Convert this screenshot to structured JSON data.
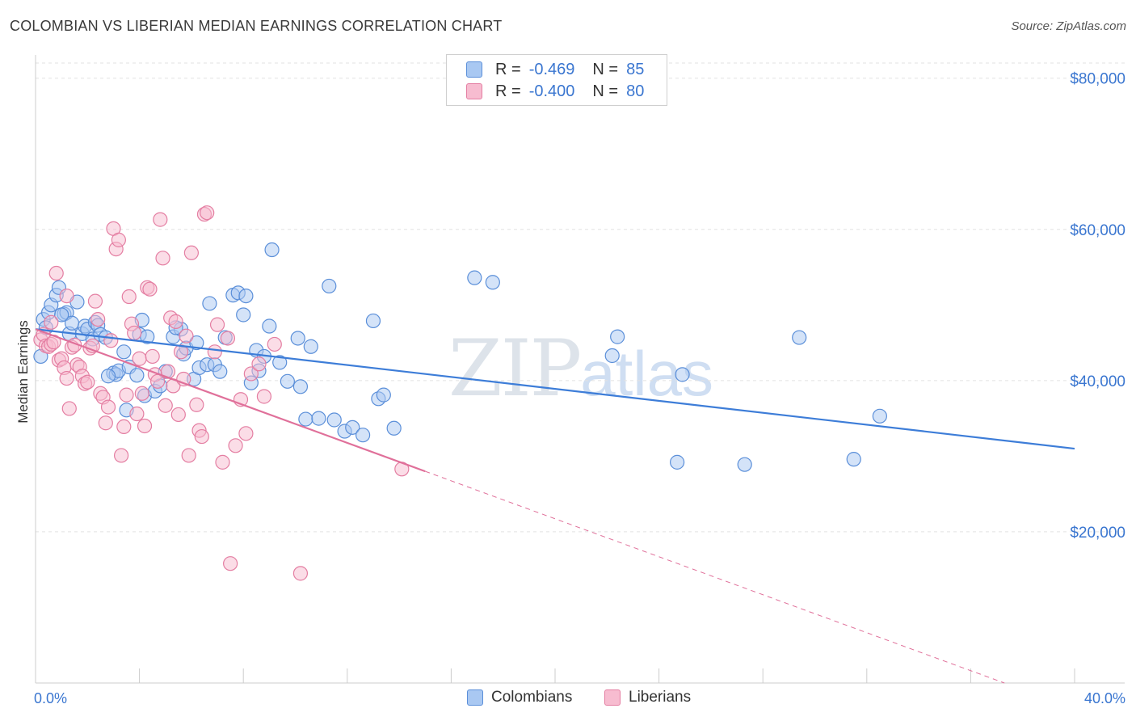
{
  "header": {
    "title": "COLOMBIAN VS LIBERIAN MEDIAN EARNINGS CORRELATION CHART",
    "source": "Source: ZipAtlas.com"
  },
  "watermark": {
    "zip": "ZIP",
    "atlas": "atlas"
  },
  "legend": {
    "rows": [
      {
        "r_label": "R =",
        "r_value": "-0.469",
        "n_label": "N =",
        "n_value": "85",
        "fill": "#a9c8f2",
        "stroke": "#5b8fd9"
      },
      {
        "r_label": "R =",
        "r_value": "-0.400",
        "n_label": "N =",
        "n_value": "80",
        "fill": "#f7bcd0",
        "stroke": "#e47ea2"
      }
    ]
  },
  "bottom_legend": {
    "colombians": "Colombians",
    "liberians": "Liberians"
  },
  "colors": {
    "blue": "#3d7dd8",
    "pink": "#e0709a",
    "axis_text": "#3a76d0",
    "grid": "#e2e2e2"
  },
  "chart_data": {
    "type": "scatter",
    "title": "COLOMBIAN VS LIBERIAN MEDIAN EARNINGS CORRELATION CHART",
    "xlabel": "",
    "ylabel": "Median Earnings",
    "xlim": [
      0,
      40
    ],
    "ylim": [
      0,
      82000
    ],
    "x_tick_labels": [
      "0.0%",
      "40.0%"
    ],
    "y_ticks": [
      20000,
      40000,
      60000,
      80000
    ],
    "y_tick_labels": [
      "$20,000",
      "$40,000",
      "$60,000",
      "$80,000"
    ],
    "grid": true,
    "legend_position": "top-center",
    "series": [
      {
        "name": "Colombians",
        "r": -0.469,
        "n": 85,
        "trend": {
          "x": [
            0,
            40
          ],
          "y": [
            46800,
            31000
          ]
        },
        "points": [
          [
            0.2,
            43200
          ],
          [
            0.3,
            48100
          ],
          [
            0.4,
            47000
          ],
          [
            0.5,
            49000
          ],
          [
            0.6,
            50000
          ],
          [
            0.8,
            51300
          ],
          [
            0.9,
            52300
          ],
          [
            1.1,
            48800
          ],
          [
            1.2,
            49000
          ],
          [
            1.3,
            46200
          ],
          [
            1.4,
            47600
          ],
          [
            1.6,
            50400
          ],
          [
            1.8,
            46200
          ],
          [
            1.9,
            47200
          ],
          [
            2.0,
            46800
          ],
          [
            2.2,
            45500
          ],
          [
            2.3,
            47700
          ],
          [
            2.4,
            47300
          ],
          [
            2.5,
            46100
          ],
          [
            2.7,
            45700
          ],
          [
            3.0,
            41000
          ],
          [
            3.1,
            40800
          ],
          [
            3.2,
            41300
          ],
          [
            3.4,
            43800
          ],
          [
            3.5,
            36100
          ],
          [
            3.6,
            41800
          ],
          [
            3.9,
            40700
          ],
          [
            4.0,
            46100
          ],
          [
            4.1,
            48000
          ],
          [
            4.2,
            38000
          ],
          [
            4.3,
            45800
          ],
          [
            4.6,
            38600
          ],
          [
            4.8,
            39300
          ],
          [
            5.0,
            41200
          ],
          [
            5.3,
            45800
          ],
          [
            5.6,
            46800
          ],
          [
            5.7,
            43500
          ],
          [
            5.8,
            44300
          ],
          [
            6.1,
            40200
          ],
          [
            6.3,
            41700
          ],
          [
            6.6,
            42100
          ],
          [
            6.7,
            50200
          ],
          [
            6.9,
            42100
          ],
          [
            7.1,
            41200
          ],
          [
            7.3,
            45700
          ],
          [
            7.6,
            51300
          ],
          [
            7.8,
            51600
          ],
          [
            8.1,
            51200
          ],
          [
            8.3,
            39700
          ],
          [
            8.5,
            44000
          ],
          [
            8.6,
            41300
          ],
          [
            8.8,
            43200
          ],
          [
            9.0,
            47200
          ],
          [
            9.1,
            57300
          ],
          [
            9.4,
            42400
          ],
          [
            9.7,
            39900
          ],
          [
            10.1,
            45600
          ],
          [
            10.2,
            39200
          ],
          [
            10.4,
            34900
          ],
          [
            10.6,
            44500
          ],
          [
            10.9,
            35000
          ],
          [
            11.3,
            52500
          ],
          [
            11.5,
            34800
          ],
          [
            11.9,
            33300
          ],
          [
            12.2,
            33800
          ],
          [
            12.6,
            32800
          ],
          [
            13.2,
            37600
          ],
          [
            13.4,
            38100
          ],
          [
            13.8,
            33700
          ],
          [
            16.9,
            53600
          ],
          [
            17.6,
            53000
          ],
          [
            22.2,
            43300
          ],
          [
            22.4,
            45800
          ],
          [
            24.7,
            29200
          ],
          [
            24.9,
            40800
          ],
          [
            27.3,
            28900
          ],
          [
            29.4,
            45700
          ],
          [
            31.5,
            29600
          ],
          [
            32.5,
            35300
          ],
          [
            1.0,
            48700
          ],
          [
            2.8,
            40600
          ],
          [
            5.4,
            47000
          ],
          [
            6.2,
            45000
          ],
          [
            8.0,
            48700
          ],
          [
            13.0,
            47900
          ]
        ]
      },
      {
        "name": "Liberians",
        "r": -0.4,
        "n": 80,
        "trend": {
          "x": [
            0,
            15
          ],
          "y": [
            46800,
            28000
          ]
        },
        "trend_extended": {
          "x": [
            15,
            37.3
          ],
          "y": [
            28000,
            0
          ]
        },
        "points": [
          [
            0.2,
            45400
          ],
          [
            0.3,
            46100
          ],
          [
            0.4,
            44600
          ],
          [
            0.5,
            44500
          ],
          [
            0.6,
            44800
          ],
          [
            0.7,
            45100
          ],
          [
            0.8,
            54200
          ],
          [
            0.9,
            42700
          ],
          [
            1.0,
            42900
          ],
          [
            1.1,
            41700
          ],
          [
            1.2,
            40300
          ],
          [
            1.3,
            36300
          ],
          [
            1.4,
            44400
          ],
          [
            1.5,
            44700
          ],
          [
            1.6,
            42100
          ],
          [
            1.7,
            41800
          ],
          [
            1.8,
            40600
          ],
          [
            1.9,
            39600
          ],
          [
            2.0,
            39800
          ],
          [
            2.1,
            44300
          ],
          [
            2.2,
            44600
          ],
          [
            2.3,
            50500
          ],
          [
            2.4,
            48100
          ],
          [
            2.5,
            38300
          ],
          [
            2.6,
            37800
          ],
          [
            2.7,
            34400
          ],
          [
            2.8,
            36500
          ],
          [
            3.0,
            60100
          ],
          [
            3.1,
            57400
          ],
          [
            3.2,
            58600
          ],
          [
            3.3,
            30100
          ],
          [
            3.4,
            33900
          ],
          [
            3.5,
            38100
          ],
          [
            3.6,
            51100
          ],
          [
            3.7,
            47500
          ],
          [
            3.8,
            46300
          ],
          [
            4.0,
            42900
          ],
          [
            4.1,
            38300
          ],
          [
            4.2,
            34000
          ],
          [
            4.3,
            52300
          ],
          [
            4.4,
            52100
          ],
          [
            4.5,
            43200
          ],
          [
            4.6,
            40800
          ],
          [
            4.7,
            39900
          ],
          [
            4.8,
            61300
          ],
          [
            4.9,
            56200
          ],
          [
            5.0,
            36700
          ],
          [
            5.1,
            41200
          ],
          [
            5.2,
            48300
          ],
          [
            5.3,
            39300
          ],
          [
            5.4,
            47800
          ],
          [
            5.5,
            35500
          ],
          [
            5.6,
            43800
          ],
          [
            5.8,
            45900
          ],
          [
            5.9,
            30100
          ],
          [
            6.0,
            56900
          ],
          [
            6.2,
            36800
          ],
          [
            6.3,
            33400
          ],
          [
            6.4,
            32600
          ],
          [
            6.5,
            62000
          ],
          [
            6.6,
            62200
          ],
          [
            6.9,
            43800
          ],
          [
            7.0,
            47400
          ],
          [
            7.2,
            29200
          ],
          [
            7.5,
            15800
          ],
          [
            7.7,
            31400
          ],
          [
            7.9,
            37500
          ],
          [
            8.1,
            33000
          ],
          [
            8.3,
            40900
          ],
          [
            8.8,
            37900
          ],
          [
            9.2,
            44800
          ],
          [
            10.2,
            14500
          ],
          [
            14.1,
            28300
          ],
          [
            0.6,
            47700
          ],
          [
            1.2,
            51200
          ],
          [
            2.9,
            45300
          ],
          [
            3.9,
            35600
          ],
          [
            5.7,
            40200
          ],
          [
            7.4,
            45600
          ],
          [
            8.6,
            42200
          ]
        ]
      }
    ]
  }
}
